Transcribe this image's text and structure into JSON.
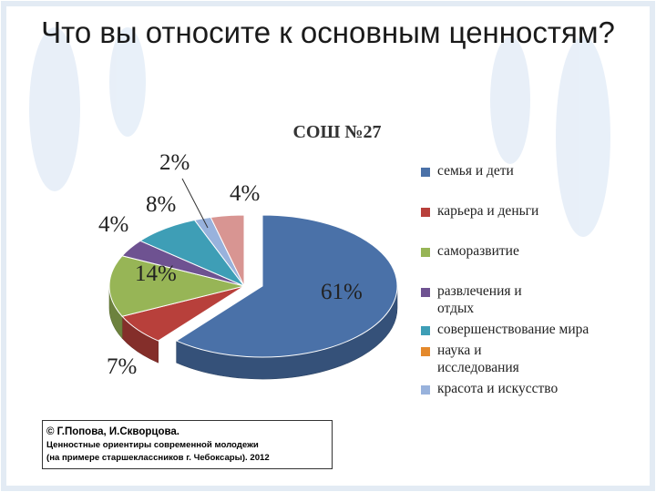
{
  "slide_title": "Что вы относите к основным ценностям?",
  "credit": {
    "author": "© Г.Попова, И.Скворцова.",
    "line1": "Ценностные ориентиры современной молодежи",
    "line2": "(на примере старшеклассников г. Чебоксары). 2012"
  },
  "chart_data": {
    "type": "pie",
    "title": "СОШ №27",
    "legend_position": "right",
    "slices": [
      {
        "name": "семья и дети",
        "label": "61%",
        "color": "#4a71a8"
      },
      {
        "name": "карьера и деньги",
        "label": "7%",
        "color": "#b8403b"
      },
      {
        "name": "саморазвитие",
        "label": "14%",
        "color": "#97b556"
      },
      {
        "name": "развлечения и отдых",
        "label": "4%",
        "color": "#6e5291"
      },
      {
        "name": "совершенствование мира",
        "label": "8%",
        "color": "#3e9eb6"
      },
      {
        "name": "наука и исследования",
        "label": "",
        "color": "#e4892c"
      },
      {
        "name": "красота и искусство",
        "label": "2%",
        "color": "#98b2dc"
      },
      {
        "name": "",
        "label": "4%",
        "color": "#d89592"
      }
    ],
    "values": [
      61,
      7,
      14,
      4,
      8,
      0,
      2,
      4
    ]
  }
}
